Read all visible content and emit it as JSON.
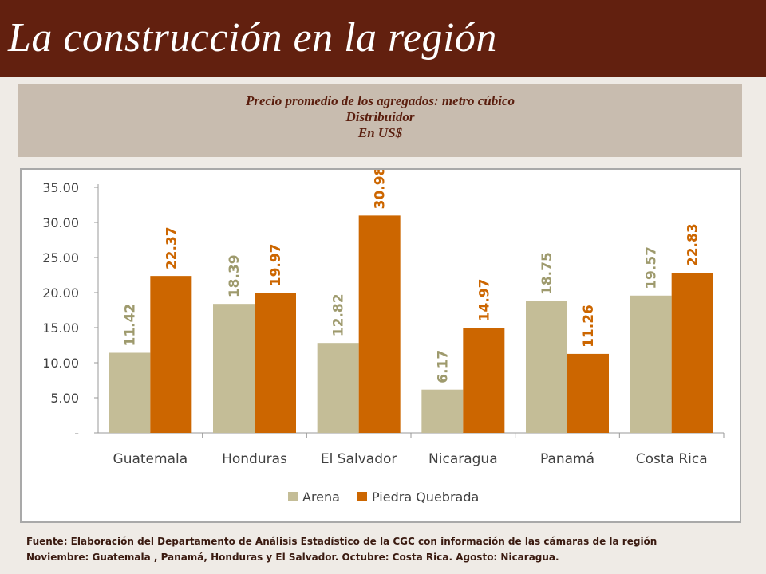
{
  "header": {
    "title": "La construcción en la región"
  },
  "subtitle": {
    "line1": "Precio promedio de los agregados: metro cúbico",
    "line2": "Distribuidor",
    "line3": "En US$"
  },
  "colors": {
    "header_bg": "#62200F",
    "subtitle_bg": "#C8BCAF",
    "arena": "#C4BD97",
    "arena_label": "#9E9A6D",
    "piedra": "#CC6600",
    "piedra_label": "#CC6600"
  },
  "chart_data": {
    "type": "bar",
    "categories": [
      "Guatemala",
      "Honduras",
      "El Salvador",
      "Nicaragua",
      "Panamá",
      "Costa Rica"
    ],
    "series": [
      {
        "name": "Arena",
        "values": [
          11.42,
          18.39,
          12.82,
          6.17,
          18.75,
          19.57
        ],
        "labels": [
          "11.42",
          "18.39",
          "12.82",
          "6.17",
          "18.75",
          "19.57"
        ]
      },
      {
        "name": "Piedra Quebrada",
        "values": [
          22.37,
          19.97,
          30.98,
          14.97,
          11.26,
          22.83
        ],
        "labels": [
          "22.37",
          "19.97",
          "30.98",
          "14.97",
          "11.26",
          "22.83"
        ]
      }
    ],
    "yticks": [
      "-",
      "5.00",
      "10.00",
      "15.00",
      "20.00",
      "25.00",
      "30.00",
      "35.00"
    ],
    "ylim": [
      0,
      35
    ],
    "grid": false,
    "legend_position": "bottom"
  },
  "footer": {
    "line1": "Fuente:  Elaboración del Departamento de Análisis Estadístico de la CGC con información de las cámaras de la región",
    "line2": "Noviembre: Guatemala , Panamá, Honduras y El Salvador.  Octubre: Costa Rica.  Agosto: Nicaragua."
  }
}
